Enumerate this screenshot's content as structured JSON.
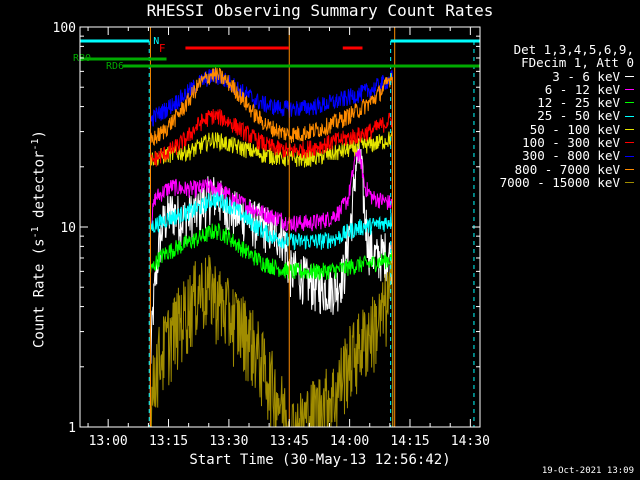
{
  "chart_data": {
    "type": "line",
    "title": "RHESSI Observing Summary Count Rates",
    "xlabel": "Start Time (30-May-13 12:56:42)",
    "ylabel": "Count Rate (s",
    "ylabel_sup": "-1",
    "ylabel_tail": " detector",
    "ylabel_end": ")",
    "y_scale": "log",
    "ylim": [
      1,
      100
    ],
    "y_ticks": [
      {
        "v": 1,
        "label": "1"
      },
      {
        "v": 10,
        "label": "10"
      },
      {
        "v": 100,
        "label": "100"
      }
    ],
    "x_range_min": [
      -3.7,
      95.7
    ],
    "x_ticks": [
      {
        "m": 3.3,
        "label": "13:00"
      },
      {
        "m": 18.3,
        "label": "13:15"
      },
      {
        "m": 33.3,
        "label": "13:30"
      },
      {
        "m": 48.3,
        "label": "13:45"
      },
      {
        "m": 63.3,
        "label": "14:00"
      },
      {
        "m": 78.3,
        "label": "14:15"
      },
      {
        "m": 93.3,
        "label": "14:30"
      }
    ],
    "legend_header": [
      "Det 1,3,4,5,6,9,",
      "FDecim 1, Att 0"
    ],
    "series": [
      {
        "name": "3 - 6 keV",
        "color": "#ffffff",
        "values": [
          [
            13.8,
            2
          ],
          [
            16,
            8
          ],
          [
            17,
            10.5
          ],
          [
            19,
            12
          ],
          [
            22,
            11
          ],
          [
            26,
            12.3
          ],
          [
            28,
            14
          ],
          [
            30,
            14.5
          ],
          [
            32,
            13
          ],
          [
            34,
            12
          ],
          [
            37,
            11.5
          ],
          [
            40,
            10.5
          ],
          [
            43,
            10
          ],
          [
            45,
            9.5
          ],
          [
            47,
            9.0
          ],
          [
            48.3,
            6
          ],
          [
            50,
            6
          ],
          [
            55,
            5
          ],
          [
            60,
            5
          ],
          [
            62,
            6
          ],
          [
            64,
            12
          ],
          [
            65,
            22
          ],
          [
            66,
            22
          ],
          [
            67,
            12
          ],
          [
            68,
            8
          ],
          [
            70,
            7
          ],
          [
            72,
            7.5
          ],
          [
            74,
            7
          ]
        ]
      },
      {
        "name": "6 - 12 keV",
        "color": "#ff00ff",
        "values": [
          [
            13.8,
            10
          ],
          [
            15,
            14
          ],
          [
            17,
            15
          ],
          [
            19,
            16
          ],
          [
            22,
            15.5
          ],
          [
            25,
            15.5
          ],
          [
            28,
            16
          ],
          [
            31,
            15.5
          ],
          [
            34,
            14
          ],
          [
            37,
            13
          ],
          [
            40,
            12.2
          ],
          [
            43,
            11.5
          ],
          [
            46,
            11
          ],
          [
            48.3,
            10.5
          ],
          [
            50,
            10.5
          ],
          [
            54,
            10.5
          ],
          [
            58,
            11
          ],
          [
            61,
            12
          ],
          [
            63,
            14
          ],
          [
            64,
            18
          ],
          [
            65,
            24
          ],
          [
            66,
            22
          ],
          [
            67,
            16
          ],
          [
            69,
            14
          ],
          [
            72,
            13.5
          ],
          [
            74,
            13
          ]
        ]
      },
      {
        "name": "12 - 25 keV",
        "color": "#00ff00",
        "values": [
          [
            13.8,
            6
          ],
          [
            16,
            7
          ],
          [
            18,
            7.5
          ],
          [
            21,
            8
          ],
          [
            24,
            8.5
          ],
          [
            27,
            9.0
          ],
          [
            29,
            9.5
          ],
          [
            31,
            9.5
          ],
          [
            33,
            9
          ],
          [
            36,
            8
          ],
          [
            39,
            7.2
          ],
          [
            42,
            6.6
          ],
          [
            45,
            6.3
          ],
          [
            48.3,
            6
          ],
          [
            52,
            6
          ],
          [
            56,
            6
          ],
          [
            60,
            6.1
          ],
          [
            63,
            6.3
          ],
          [
            66,
            6.5
          ],
          [
            69,
            6.6
          ],
          [
            72,
            6.8
          ],
          [
            74,
            7
          ]
        ]
      },
      {
        "name": "25 - 50 keV",
        "color": "#00ffff",
        "values": [
          [
            13.8,
            10
          ],
          [
            16,
            10.5
          ],
          [
            18,
            11
          ],
          [
            21,
            11.5
          ],
          [
            24,
            12
          ],
          [
            27,
            12.8
          ],
          [
            29,
            13.8
          ],
          [
            31,
            13.6
          ],
          [
            33,
            13
          ],
          [
            36,
            11.8
          ],
          [
            39,
            10.5
          ],
          [
            42,
            9.5
          ],
          [
            45,
            8.8
          ],
          [
            48.3,
            8.5
          ],
          [
            52,
            8.5
          ],
          [
            56,
            8.5
          ],
          [
            60,
            8.8
          ],
          [
            63,
            9.5
          ],
          [
            66,
            10
          ],
          [
            69,
            10.2
          ],
          [
            72,
            10.5
          ],
          [
            74,
            11
          ]
        ]
      },
      {
        "name": "50 - 100 keV",
        "color": "#e5e500",
        "values": [
          [
            13.8,
            22
          ],
          [
            16,
            22.5
          ],
          [
            18,
            23
          ],
          [
            21,
            23.5
          ],
          [
            24,
            24
          ],
          [
            27,
            26
          ],
          [
            29,
            27.5
          ],
          [
            31,
            27
          ],
          [
            33,
            26
          ],
          [
            36,
            25
          ],
          [
            39,
            24
          ],
          [
            42,
            23
          ],
          [
            45,
            22.5
          ],
          [
            48.3,
            22
          ],
          [
            52,
            22
          ],
          [
            56,
            22.5
          ],
          [
            60,
            23.5
          ],
          [
            63,
            24.5
          ],
          [
            66,
            25.5
          ],
          [
            69,
            26
          ],
          [
            72,
            27
          ],
          [
            74,
            28
          ]
        ]
      },
      {
        "name": "100 - 300 keV",
        "color": "#ff0000",
        "values": [
          [
            13.8,
            21
          ],
          [
            15,
            22
          ],
          [
            17,
            23
          ],
          [
            20,
            25
          ],
          [
            23,
            28
          ],
          [
            26,
            33
          ],
          [
            29,
            36
          ],
          [
            31,
            35.5
          ],
          [
            34,
            33
          ],
          [
            37,
            30
          ],
          [
            40,
            27.5
          ],
          [
            43,
            25.5
          ],
          [
            46,
            24.5
          ],
          [
            48.3,
            24
          ],
          [
            52,
            24.5
          ],
          [
            56,
            25.5
          ],
          [
            60,
            27
          ],
          [
            63,
            28
          ],
          [
            66,
            29
          ],
          [
            69,
            30.5
          ],
          [
            72,
            33
          ],
          [
            74,
            35
          ]
        ]
      },
      {
        "name": "300 - 800 keV",
        "color": "#0000ff",
        "values": [
          [
            13.8,
            34
          ],
          [
            15,
            36
          ],
          [
            17,
            38
          ],
          [
            20,
            42
          ],
          [
            23,
            47
          ],
          [
            26,
            53
          ],
          [
            29,
            57
          ],
          [
            31,
            56
          ],
          [
            34,
            52
          ],
          [
            37,
            47
          ],
          [
            40,
            43
          ],
          [
            43,
            40.5
          ],
          [
            46,
            39.5
          ],
          [
            48.3,
            39
          ],
          [
            52,
            39.5
          ],
          [
            56,
            40.5
          ],
          [
            60,
            42.5
          ],
          [
            63,
            44.5
          ],
          [
            66,
            46.5
          ],
          [
            69,
            49
          ],
          [
            72,
            53
          ],
          [
            74,
            56
          ]
        ]
      },
      {
        "name": "800 - 7000 keV",
        "color": "#ff8c00",
        "values": [
          [
            13.8,
            27
          ],
          [
            15,
            28
          ],
          [
            17,
            30
          ],
          [
            20,
            35
          ],
          [
            23,
            42
          ],
          [
            26,
            52
          ],
          [
            29,
            58
          ],
          [
            31,
            57
          ],
          [
            34,
            51
          ],
          [
            37,
            43
          ],
          [
            40,
            36
          ],
          [
            43,
            32
          ],
          [
            46,
            30
          ],
          [
            48.3,
            29
          ],
          [
            52,
            29.5
          ],
          [
            56,
            31
          ],
          [
            60,
            33.5
          ],
          [
            63,
            36
          ],
          [
            66,
            39
          ],
          [
            69,
            43
          ],
          [
            72,
            50
          ],
          [
            74,
            58
          ]
        ]
      },
      {
        "name": "7000 - 15000 keV",
        "color": "#a08c00",
        "values": [
          [
            13.8,
            1
          ],
          [
            15,
            2
          ],
          [
            17,
            2.5
          ],
          [
            19,
            3
          ],
          [
            21,
            3.5
          ],
          [
            23,
            4
          ],
          [
            26,
            5
          ],
          [
            29,
            5
          ],
          [
            32,
            4
          ],
          [
            35,
            3.5
          ],
          [
            38,
            3
          ],
          [
            40,
            2.5
          ],
          [
            42,
            2
          ],
          [
            45,
            1.5
          ],
          [
            48.3,
            1
          ],
          [
            50,
            1
          ],
          [
            60,
            1.5
          ],
          [
            62,
            2
          ],
          [
            65,
            2.5
          ],
          [
            68,
            3
          ],
          [
            71,
            3.5
          ],
          [
            74,
            5
          ]
        ]
      }
    ],
    "attenuator": {
      "label": "F",
      "color": "#ff0000",
      "segments": [
        [
          22.5,
          48.2
        ],
        [
          61.6,
          66.5
        ]
      ],
      "mark": 18.4
    },
    "night": {
      "label": "N",
      "color": "#00ffff",
      "segments": [
        [
          -3.7,
          13.5
        ],
        [
          73.5,
          95.7
        ]
      ],
      "lines": [
        13.5,
        73.5,
        94.2
      ]
    },
    "rb0": {
      "label": "RB0",
      "color": "#00aa00",
      "segments": [
        [
          -3.7,
          17.8
        ]
      ]
    },
    "rd6": {
      "label": "RD6",
      "color": "#00aa00",
      "segments": [
        [
          7,
          95.7
        ]
      ]
    },
    "orbit_lines": [
      13.8,
      48.3,
      74.5
    ]
  },
  "timestamp": "19-Oct-2021 13:09"
}
